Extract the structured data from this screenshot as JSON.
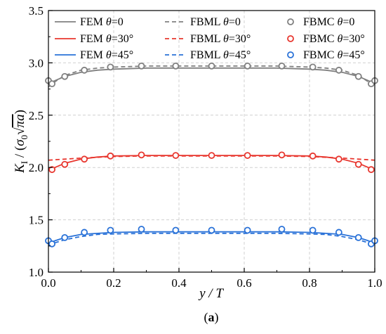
{
  "chart_data": {
    "type": "line",
    "title": "",
    "xlabel": "y / T",
    "ylabel": "K_I / (σ₀√(πa))",
    "ylabel_parts": {
      "k": "K",
      "sub": "I",
      "open": " / (",
      "sigma": "σ",
      "sigma_sub": "0",
      "sqrt_arg": "πa",
      "close": ")"
    },
    "xlim": [
      0.0,
      1.0
    ],
    "ylim": [
      1.0,
      3.5
    ],
    "x_ticks": [
      "0.0",
      "0.2",
      "0.4",
      "0.6",
      "0.8",
      "1.0"
    ],
    "y_ticks": [
      "1.0",
      "1.5",
      "2.0",
      "2.5",
      "3.0",
      "3.5"
    ],
    "grid": true,
    "legend_position": "top",
    "caption": {
      "open": "(",
      "letter": "a",
      "close": ")"
    },
    "series": [
      {
        "name": "FEM θ=0",
        "legend_prefix": "FEM ",
        "legend_theta": "θ",
        "legend_suffix": "=0",
        "style": "solid",
        "color": "#808080",
        "x": [
          0.0,
          0.02,
          0.05,
          0.1,
          0.15,
          0.2,
          0.3,
          0.4,
          0.5,
          0.6,
          0.7,
          0.8,
          0.85,
          0.9,
          0.95,
          0.98,
          1.0
        ],
        "y": [
          2.8,
          2.83,
          2.87,
          2.91,
          2.93,
          2.94,
          2.95,
          2.95,
          2.95,
          2.95,
          2.95,
          2.94,
          2.93,
          2.91,
          2.87,
          2.83,
          2.8
        ]
      },
      {
        "name": "FBML θ=0",
        "legend_prefix": "FBML ",
        "legend_theta": "θ",
        "legend_suffix": "=0",
        "style": "dashed",
        "color": "#808080",
        "x": [
          0.0,
          0.02,
          0.05,
          0.1,
          0.15,
          0.2,
          0.3,
          0.4,
          0.5,
          0.6,
          0.7,
          0.8,
          0.85,
          0.9,
          0.95,
          0.98,
          1.0
        ],
        "y": [
          2.77,
          2.82,
          2.88,
          2.93,
          2.95,
          2.96,
          2.97,
          2.97,
          2.97,
          2.97,
          2.97,
          2.96,
          2.95,
          2.93,
          2.88,
          2.82,
          2.77
        ]
      },
      {
        "name": "FBMC θ=0",
        "legend_prefix": "FBMC ",
        "legend_theta": "θ",
        "legend_suffix": "=0",
        "style": "markers",
        "color": "#808080",
        "x": [
          0.0,
          0.011,
          0.05,
          0.11,
          0.19,
          0.285,
          0.39,
          0.5,
          0.61,
          0.715,
          0.81,
          0.89,
          0.95,
          0.989,
          1.0
        ],
        "y": [
          2.83,
          2.8,
          2.87,
          2.93,
          2.96,
          2.97,
          2.97,
          2.97,
          2.97,
          2.97,
          2.96,
          2.93,
          2.87,
          2.8,
          2.83
        ]
      },
      {
        "name": "FEM θ=30°",
        "legend_prefix": "FEM ",
        "legend_theta": "θ",
        "legend_suffix": "=30°",
        "style": "solid",
        "color": "#e8372f",
        "x": [
          0.0,
          0.02,
          0.05,
          0.1,
          0.15,
          0.2,
          0.3,
          0.4,
          0.5,
          0.6,
          0.7,
          0.8,
          0.85,
          0.9,
          0.95,
          0.98,
          1.0
        ],
        "y": [
          1.97,
          2.0,
          2.04,
          2.08,
          2.1,
          2.11,
          2.115,
          2.115,
          2.115,
          2.115,
          2.115,
          2.11,
          2.1,
          2.08,
          2.04,
          2.0,
          1.97
        ]
      },
      {
        "name": "FBML θ=30°",
        "legend_prefix": "FBML ",
        "legend_theta": "θ",
        "legend_suffix": "=30°",
        "style": "dashed",
        "color": "#e8372f",
        "x": [
          0.0,
          0.05,
          0.1,
          0.2,
          0.3,
          0.4,
          0.5,
          0.6,
          0.7,
          0.8,
          0.9,
          0.95,
          1.0
        ],
        "y": [
          2.07,
          2.08,
          2.09,
          2.105,
          2.11,
          2.11,
          2.11,
          2.11,
          2.11,
          2.105,
          2.09,
          2.08,
          2.07
        ]
      },
      {
        "name": "FBMC θ=30°",
        "legend_prefix": "FBMC ",
        "legend_theta": "θ",
        "legend_suffix": "=30°",
        "style": "markers",
        "color": "#e8372f",
        "x": [
          0.011,
          0.05,
          0.11,
          0.19,
          0.285,
          0.39,
          0.5,
          0.61,
          0.715,
          0.81,
          0.89,
          0.95,
          0.989
        ],
        "y": [
          1.98,
          2.03,
          2.08,
          2.11,
          2.12,
          2.115,
          2.115,
          2.115,
          2.12,
          2.11,
          2.08,
          2.03,
          1.98
        ]
      },
      {
        "name": "FEM θ=45°",
        "legend_prefix": "FEM ",
        "legend_theta": "θ",
        "legend_suffix": "=45°",
        "style": "solid",
        "color": "#2a72d8",
        "x": [
          0.0,
          0.02,
          0.05,
          0.1,
          0.15,
          0.2,
          0.3,
          0.4,
          0.5,
          0.6,
          0.7,
          0.8,
          0.85,
          0.9,
          0.95,
          0.98,
          1.0
        ],
        "y": [
          1.27,
          1.3,
          1.33,
          1.36,
          1.37,
          1.38,
          1.385,
          1.385,
          1.385,
          1.385,
          1.385,
          1.38,
          1.37,
          1.36,
          1.33,
          1.3,
          1.27
        ]
      },
      {
        "name": "FBML θ=45°",
        "legend_prefix": "FBML ",
        "legend_theta": "θ",
        "legend_suffix": "=45°",
        "style": "dashed",
        "color": "#2a72d8",
        "x": [
          0.0,
          0.02,
          0.05,
          0.1,
          0.15,
          0.2,
          0.3,
          0.4,
          0.5,
          0.6,
          0.7,
          0.8,
          0.85,
          0.9,
          0.95,
          0.98,
          1.0
        ],
        "y": [
          1.25,
          1.28,
          1.31,
          1.34,
          1.36,
          1.365,
          1.37,
          1.37,
          1.37,
          1.37,
          1.37,
          1.365,
          1.36,
          1.34,
          1.31,
          1.28,
          1.25
        ]
      },
      {
        "name": "FBMC θ=45°",
        "legend_prefix": "FBMC ",
        "legend_theta": "θ",
        "legend_suffix": "=45°",
        "style": "markers",
        "color": "#2a72d8",
        "x": [
          0.0,
          0.011,
          0.05,
          0.11,
          0.19,
          0.285,
          0.39,
          0.5,
          0.61,
          0.715,
          0.81,
          0.89,
          0.95,
          0.989,
          1.0
        ],
        "y": [
          1.3,
          1.27,
          1.33,
          1.38,
          1.4,
          1.41,
          1.4,
          1.4,
          1.4,
          1.41,
          1.4,
          1.38,
          1.33,
          1.27,
          1.3
        ]
      }
    ]
  }
}
